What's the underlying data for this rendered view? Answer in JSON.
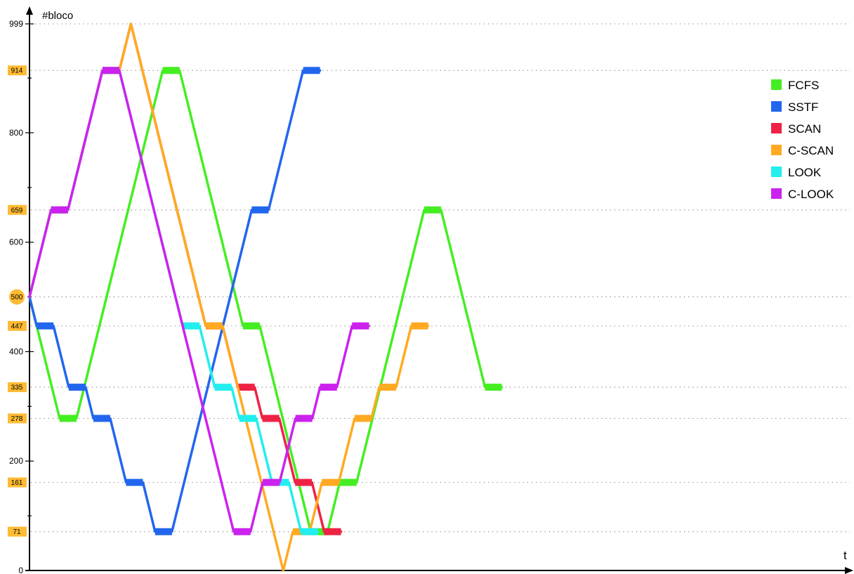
{
  "chart_data": {
    "type": "line",
    "ylabel": "#bloco",
    "xlabel": "t",
    "ylim": [
      0,
      999
    ],
    "y_ticks": [
      0,
      200,
      400,
      600,
      800,
      999
    ],
    "highlight_values": [
      914,
      659,
      500,
      447,
      335,
      278,
      161,
      71
    ],
    "grid": "dotted horizontal lines at each highlighted block",
    "legend_position": "top-right",
    "series": [
      {
        "name": "FCFS",
        "color": "#44ee22",
        "points": [
          500,
          278,
          914,
          447,
          71,
          161,
          659,
          335
        ]
      },
      {
        "name": "SSTF",
        "color": "#2266ee",
        "points": [
          500,
          447,
          335,
          278,
          161,
          71,
          659,
          914
        ]
      },
      {
        "name": "SCAN",
        "color": "#ee2244",
        "points": [
          500,
          659,
          914,
          999,
          447,
          335,
          278,
          161,
          71
        ]
      },
      {
        "name": "C-SCAN",
        "color": "#ffaa22",
        "points": [
          500,
          659,
          914,
          999,
          447,
          0,
          71,
          161,
          278,
          335,
          447
        ]
      },
      {
        "name": "LOOK",
        "color": "#22eeee",
        "points": [
          500,
          659,
          914,
          447,
          335,
          278,
          161,
          71
        ]
      },
      {
        "name": "C-LOOK",
        "color": "#cc22ee",
        "points": [
          500,
          659,
          914,
          71,
          161,
          278,
          335,
          447
        ]
      }
    ]
  }
}
